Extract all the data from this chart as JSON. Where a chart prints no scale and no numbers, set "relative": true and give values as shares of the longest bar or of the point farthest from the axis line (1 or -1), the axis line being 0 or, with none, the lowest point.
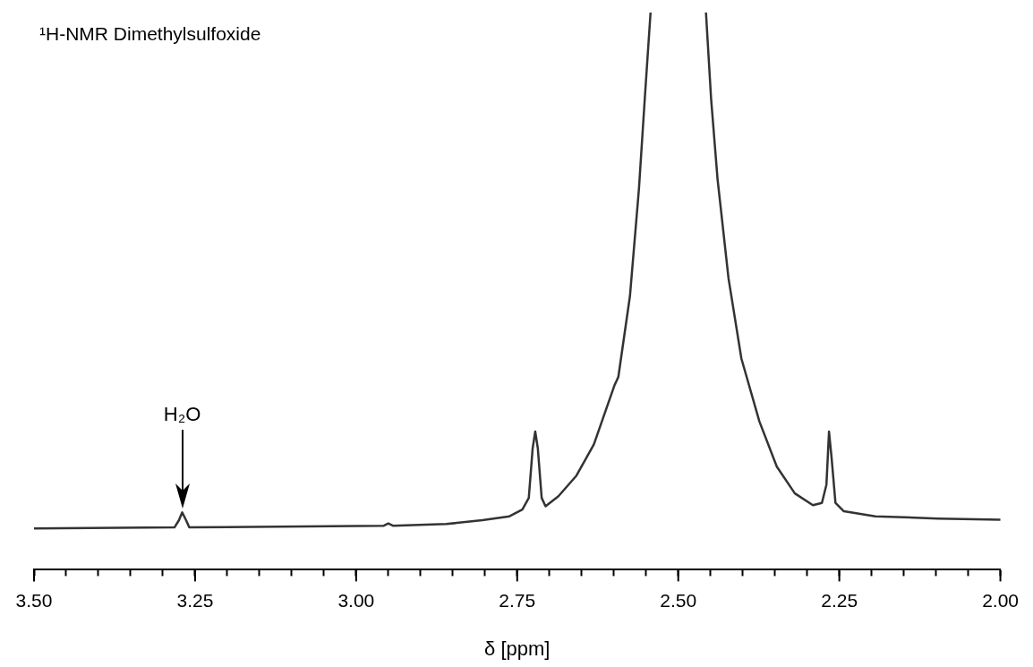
{
  "chart_data": {
    "type": "line",
    "title": "¹H-NMR Dimethylsulfoxide",
    "xlabel": "δ [ppm]",
    "relative": true,
    "grid": false,
    "legend": false,
    "marker": "none",
    "line_style": "solid",
    "xlim": [
      3.5,
      2.0
    ],
    "xticks": [
      {
        "value": 3.5,
        "label": "3.50"
      },
      {
        "value": 3.45,
        "label": null
      },
      {
        "value": 3.4,
        "label": null
      },
      {
        "value": 3.35,
        "label": null
      },
      {
        "value": 3.3,
        "label": null
      },
      {
        "value": 3.25,
        "label": "3.25"
      },
      {
        "value": 3.2,
        "label": null
      },
      {
        "value": 3.15,
        "label": null
      },
      {
        "value": 3.1,
        "label": null
      },
      {
        "value": 3.05,
        "label": null
      },
      {
        "value": 3.0,
        "label": "3.00"
      },
      {
        "value": 2.95,
        "label": null
      },
      {
        "value": 2.9,
        "label": null
      },
      {
        "value": 2.85,
        "label": null
      },
      {
        "value": 2.8,
        "label": null
      },
      {
        "value": 2.75,
        "label": "2.75"
      },
      {
        "value": 2.7,
        "label": null
      },
      {
        "value": 2.65,
        "label": null
      },
      {
        "value": 2.6,
        "label": null
      },
      {
        "value": 2.55,
        "label": null
      },
      {
        "value": 2.5,
        "label": "2.50"
      },
      {
        "value": 2.45,
        "label": null
      },
      {
        "value": 2.4,
        "label": null
      },
      {
        "value": 2.35,
        "label": null
      },
      {
        "value": 2.3,
        "label": null
      },
      {
        "value": 2.25,
        "label": "2.25"
      },
      {
        "value": 2.2,
        "label": null
      },
      {
        "value": 2.15,
        "label": null
      },
      {
        "value": 2.1,
        "label": null
      },
      {
        "value": 2.05,
        "label": null
      },
      {
        "value": 2.0,
        "label": "2.00"
      }
    ],
    "annotations": [
      "H₂O"
    ],
    "series": [
      {
        "color": "#333333",
        "x": [
          3.5,
          3.282,
          3.275,
          3.27,
          3.264,
          3.259,
          2.957,
          2.95,
          2.943,
          2.86,
          2.804,
          2.762,
          2.742,
          2.732,
          2.726,
          2.722,
          2.718,
          2.712,
          2.706,
          2.686,
          2.658,
          2.631,
          2.599,
          2.593,
          2.575,
          2.561,
          2.552,
          2.543,
          2.5,
          2.457,
          2.449,
          2.439,
          2.422,
          2.402,
          2.374,
          2.347,
          2.319,
          2.291,
          2.277,
          2.27,
          2.266,
          2.262,
          2.256,
          2.243,
          2.194,
          2.097,
          2.0
        ],
        "values": [
          0.074,
          0.076,
          0.089,
          0.103,
          0.089,
          0.076,
          0.079,
          0.083,
          0.079,
          0.082,
          0.089,
          0.096,
          0.108,
          0.129,
          0.218,
          0.248,
          0.218,
          0.129,
          0.114,
          0.132,
          0.169,
          0.225,
          0.331,
          0.346,
          0.491,
          0.684,
          0.845,
          1.0,
          null,
          1.0,
          0.845,
          0.701,
          0.523,
          0.379,
          0.266,
          0.185,
          0.137,
          0.116,
          0.12,
          0.153,
          0.248,
          0.201,
          0.12,
          0.105,
          0.096,
          0.092,
          0.09
        ]
      }
    ]
  }
}
